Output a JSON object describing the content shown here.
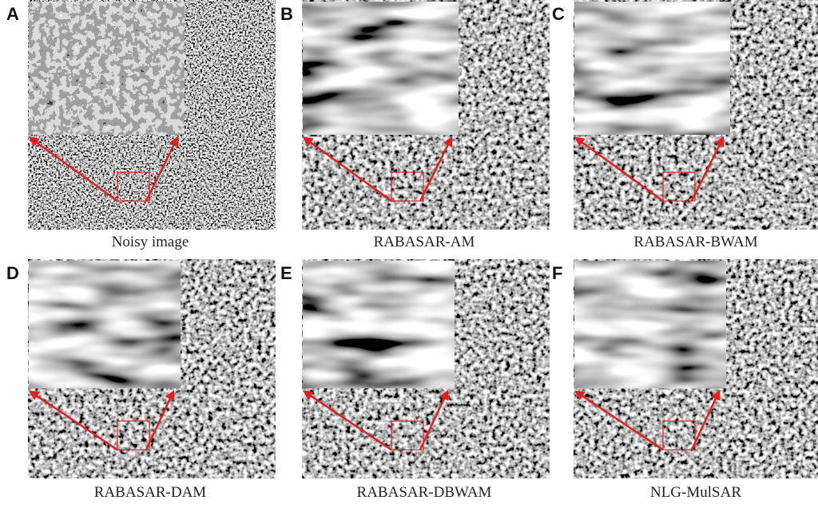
{
  "panels": [
    {
      "label": "A",
      "caption": "Noisy image"
    },
    {
      "label": "B",
      "caption": "RABASAR-AM"
    },
    {
      "label": "C",
      "caption": "RABASAR-BWAM"
    },
    {
      "label": "D",
      "caption": "RABASAR-DAM"
    },
    {
      "label": "E",
      "caption": "RABASAR-DBWAM"
    },
    {
      "label": "F",
      "caption": "NLG-MulSAR"
    }
  ]
}
